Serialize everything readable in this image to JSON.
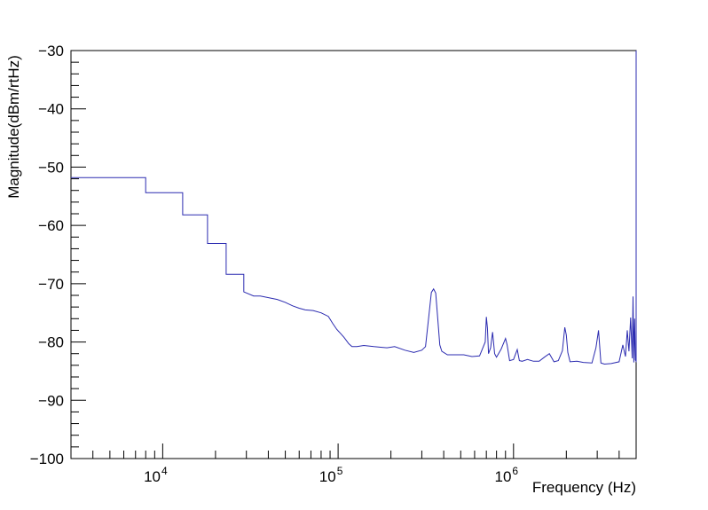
{
  "chart_data": {
    "type": "line",
    "title": "",
    "xlabel": "Frequency (Hz)",
    "ylabel": "Magnitude(dBm/rtHz)",
    "x_scale": "log",
    "xlim": [
      3000,
      5000000
    ],
    "ylim": [
      -100,
      -30
    ],
    "grid": false,
    "legend": "none",
    "line_color": "#2b2bb0",
    "y_ticks": [
      {
        "value": -30,
        "label": "−30"
      },
      {
        "value": -40,
        "label": "−40"
      },
      {
        "value": -50,
        "label": "−50"
      },
      {
        "value": -60,
        "label": "−60"
      },
      {
        "value": -70,
        "label": "−70"
      },
      {
        "value": -80,
        "label": "−80"
      },
      {
        "value": -90,
        "label": "−90"
      },
      {
        "value": -100,
        "label": "−100"
      }
    ],
    "x_ticks": [
      {
        "value": 10000,
        "base": "10",
        "exp": "4"
      },
      {
        "value": 100000,
        "base": "10",
        "exp": "5"
      },
      {
        "value": 1000000,
        "base": "10",
        "exp": "6"
      }
    ],
    "series": [
      {
        "x": [
          3000,
          8000,
          8000,
          13000,
          13000,
          18000,
          18000,
          23000,
          23000,
          29000,
          29000,
          33000,
          36000,
          45000,
          50000,
          55000,
          60000,
          65000,
          72000,
          80000,
          88000,
          93000,
          98000,
          103000,
          108000,
          115000,
          120000,
          128000,
          140000,
          160000,
          175000,
          190000,
          210000,
          240000,
          270000,
          300000,
          315000,
          330000,
          340000,
          350000,
          360000,
          370000,
          380000,
          390000,
          420000,
          460000,
          520000,
          580000,
          640000,
          690000,
          700000,
          710000,
          720000,
          740000,
          760000,
          780000,
          800000,
          850000,
          900000,
          920000,
          950000,
          1000000,
          1050000,
          1080000,
          1120000,
          1200000,
          1300000,
          1400000,
          1500000,
          1600000,
          1700000,
          1800000,
          1900000,
          1960000,
          2000000,
          2040000,
          2100000,
          2300000,
          2500000,
          2800000,
          2950000,
          3050000,
          3150000,
          3300000,
          3600000,
          4000000,
          4200000,
          4350000,
          4450000,
          4550000,
          4650000,
          4750000,
          4800000,
          4850000,
          4900000,
          4950000,
          5000000,
          5000000
        ],
        "y": [
          -51.8,
          -51.8,
          -54.4,
          -54.4,
          -58.2,
          -58.2,
          -63.1,
          -63.1,
          -68.4,
          -68.4,
          -71.4,
          -72.1,
          -72.1,
          -72.7,
          -73.2,
          -73.8,
          -74.2,
          -74.5,
          -74.6,
          -75.0,
          -75.6,
          -76.8,
          -77.8,
          -78.5,
          -79.2,
          -80.3,
          -80.8,
          -80.8,
          -80.6,
          -80.8,
          -80.9,
          -81.0,
          -80.8,
          -81.4,
          -81.8,
          -81.4,
          -80.8,
          -75.2,
          -71.5,
          -70.9,
          -71.6,
          -76.0,
          -80.5,
          -81.6,
          -82.2,
          -82.2,
          -82.2,
          -82.5,
          -82.4,
          -80.0,
          -75.7,
          -77.6,
          -82.0,
          -81.0,
          -78.3,
          -82.0,
          -82.6,
          -81.2,
          -79.4,
          -80.5,
          -83.2,
          -83.0,
          -81.3,
          -83.2,
          -83.3,
          -83.0,
          -83.3,
          -83.3,
          -82.6,
          -82.0,
          -83.4,
          -83.2,
          -81.5,
          -77.5,
          -78.8,
          -81.8,
          -83.4,
          -83.3,
          -83.5,
          -83.6,
          -81.0,
          -78.0,
          -83.6,
          -83.8,
          -83.7,
          -83.4,
          -80.5,
          -82.5,
          -78.0,
          -81.6,
          -75.8,
          -82.8,
          -72.2,
          -83.5,
          -76.0,
          -83.1,
          -83.3,
          -30.0
        ]
      }
    ]
  }
}
